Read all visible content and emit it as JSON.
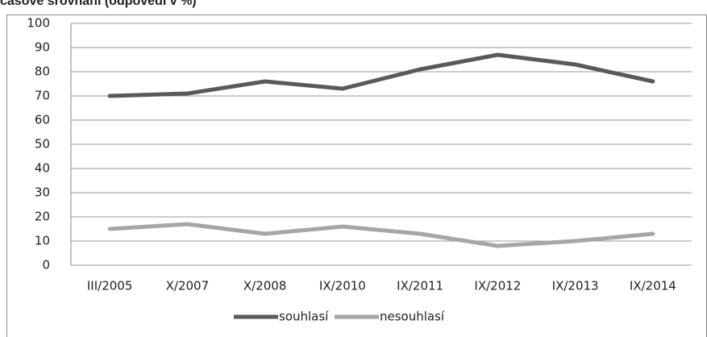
{
  "chart_data": {
    "type": "line",
    "title": "časové srovnání (odpovědi v %)",
    "categories": [
      "III/2005",
      "X/2007",
      "X/2008",
      "IX/2010",
      "IX/2011",
      "IX/2012",
      "IX/2013",
      "IX/2014"
    ],
    "series": [
      {
        "name": "souhlasí",
        "color": "#595959",
        "values": [
          70,
          71,
          76,
          73,
          81,
          87,
          83,
          76
        ]
      },
      {
        "name": "nesouhlasí",
        "color": "#a6a6a6",
        "values": [
          15,
          17,
          13,
          16,
          13,
          8,
          10,
          13
        ]
      }
    ],
    "ylim": [
      0,
      100
    ],
    "yticks": [
      0,
      10,
      20,
      30,
      40,
      50,
      60,
      70,
      80,
      90,
      100
    ],
    "grid": true,
    "legend": "bottom"
  }
}
